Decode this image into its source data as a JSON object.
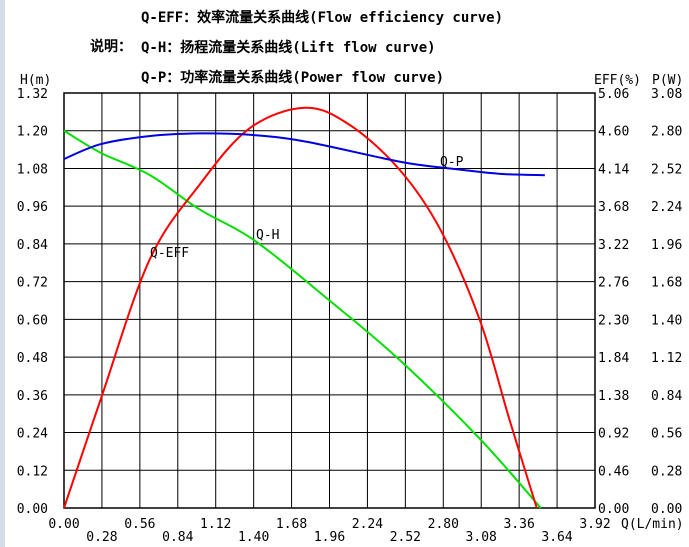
{
  "legend": {
    "intro": "说明：",
    "lines": [
      "Q-EFF：效率流量关系曲线(Flow efficiency curve)",
      "Q-H：扬程流量关系曲线(Lift flow curve)",
      "Q-P：功率流量关系曲线(Power flow curve)"
    ]
  },
  "chart_data": {
    "type": "line",
    "grid": true,
    "xlabel": "Q(L/min)",
    "ylabel_left": "H(m)",
    "ylabel_right1": "EFF(%)",
    "ylabel_right2": "P(W)",
    "xlim": [
      0,
      3.92
    ],
    "ylim_left": [
      0,
      1.32
    ],
    "ylim_eff": [
      0,
      5.06
    ],
    "ylim_power": [
      0,
      3.08
    ],
    "x_ticks": [
      "0.00",
      "0.28",
      "0.56",
      "0.84",
      "1.12",
      "1.40",
      "1.68",
      "1.96",
      "2.24",
      "2.52",
      "2.80",
      "3.08",
      "3.36",
      "3.64",
      "3.92"
    ],
    "y_ticks_left": [
      "0.00",
      "0.12",
      "0.24",
      "0.36",
      "0.48",
      "0.60",
      "0.72",
      "0.84",
      "0.96",
      "1.08",
      "1.20",
      "1.32"
    ],
    "y_ticks_eff": [
      "0.00",
      "0.46",
      "0.92",
      "1.38",
      "1.84",
      "2.30",
      "2.76",
      "3.22",
      "3.68",
      "4.14",
      "4.60",
      "5.06"
    ],
    "y_ticks_power": [
      "0.00",
      "0.28",
      "0.56",
      "0.84",
      "1.12",
      "1.40",
      "1.68",
      "1.96",
      "2.24",
      "2.52",
      "2.80",
      "3.08"
    ],
    "series": [
      {
        "name": "Q-H",
        "axis": "left",
        "color": "#00e000",
        "x": [
          0,
          0.27,
          0.63,
          1.0,
          1.41,
          1.96,
          2.48,
          3.07,
          3.52
        ],
        "y": [
          1.2,
          1.13,
          1.06,
          0.95,
          0.85,
          0.66,
          0.47,
          0.22,
          0
        ]
      },
      {
        "name": "Q-EFF",
        "axis": "eff",
        "color": "#ff0000",
        "x": [
          0,
          0.27,
          0.63,
          1.0,
          1.37,
          1.78,
          2.11,
          2.48,
          2.78,
          3.07,
          3.29,
          3.49
        ],
        "y": [
          0,
          1.32,
          3.02,
          3.94,
          4.63,
          4.88,
          4.67,
          4.12,
          3.39,
          2.29,
          1.07,
          0
        ]
      },
      {
        "name": "Q-P",
        "axis": "power",
        "color": "#0000e0",
        "x": [
          0,
          0.27,
          0.63,
          1.0,
          1.37,
          1.78,
          2.48,
          2.85,
          3.22,
          3.55
        ],
        "y": [
          2.59,
          2.7,
          2.76,
          2.78,
          2.77,
          2.72,
          2.57,
          2.52,
          2.48,
          2.47
        ]
      }
    ]
  }
}
